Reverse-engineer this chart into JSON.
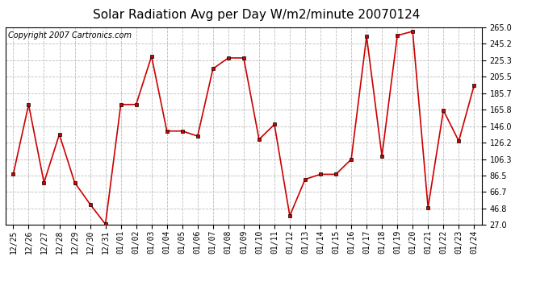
{
  "title": "Solar Radiation Avg per Day W/m2/minute 20070124",
  "copyright": "Copyright 2007 Cartronics.com",
  "line_color": "#cc0000",
  "bg_color": "#ffffff",
  "grid_color": "#bbbbbb",
  "dates": [
    "12/25",
    "12/26",
    "12/27",
    "12/28",
    "12/29",
    "12/30",
    "12/31",
    "01/01",
    "01/02",
    "01/03",
    "01/04",
    "01/05",
    "01/06",
    "01/07",
    "01/08",
    "01/09",
    "01/10",
    "01/11",
    "01/12",
    "01/13",
    "01/14",
    "01/15",
    "01/16",
    "01/17",
    "01/18",
    "01/19",
    "01/20",
    "01/21",
    "01/22",
    "01/23",
    "01/24"
  ],
  "values": [
    88,
    172,
    78,
    136,
    78,
    52,
    28,
    172,
    172,
    230,
    140,
    140,
    134,
    215,
    228,
    228,
    130,
    148,
    38,
    82,
    88,
    88,
    106,
    254,
    110,
    255,
    260,
    48,
    165,
    128,
    195
  ],
  "yticks": [
    27.0,
    46.8,
    66.7,
    86.5,
    106.3,
    126.2,
    146.0,
    165.8,
    185.7,
    205.5,
    225.3,
    245.2,
    265.0
  ],
  "ymin": 27.0,
  "ymax": 265.0,
  "title_fontsize": 11,
  "copyright_fontsize": 7,
  "tick_fontsize": 7,
  "marker_size": 2.5,
  "linewidth": 1.2
}
